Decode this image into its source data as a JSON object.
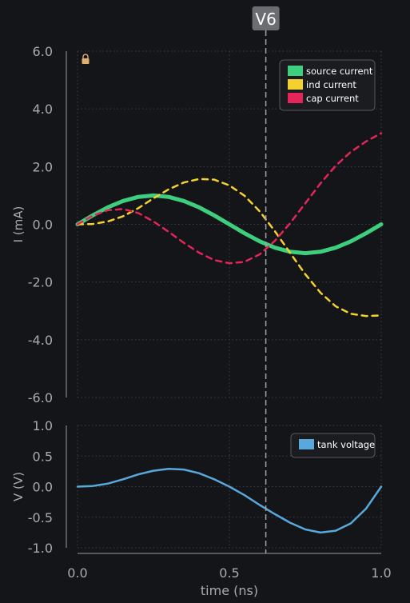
{
  "cursor": {
    "label": "V6",
    "x": 0.62
  },
  "colors": {
    "background": "#141518",
    "axis": "#9a9ca2",
    "grid": "#3c3f46",
    "tick_text": "#a8aab0",
    "cursor": "#a0a2a8",
    "cursor_badge": "#6b6d72",
    "legend_bg": "#1b1c20",
    "legend_border": "#555860",
    "lock": "#e0b070"
  },
  "icons": {
    "lock": "lock-icon"
  },
  "chart_data": [
    {
      "type": "line",
      "ylabel": "I (mA)",
      "ylim": [
        -6,
        6
      ],
      "yticks": [
        "6.0",
        "4.0",
        "2.0",
        "0.0",
        "-2.0",
        "-4.0",
        "-6.0"
      ],
      "grid": true,
      "legend_position": "top-right",
      "x": [
        0,
        0.05,
        0.1,
        0.15,
        0.2,
        0.25,
        0.3,
        0.35,
        0.4,
        0.45,
        0.5,
        0.55,
        0.6,
        0.65,
        0.7,
        0.75,
        0.8,
        0.85,
        0.9,
        0.95,
        1.0
      ],
      "series": [
        {
          "name": "source current",
          "color": "#3ecf7e",
          "style": "solid",
          "values": [
            0.0,
            0.31,
            0.59,
            0.81,
            0.95,
            1.0,
            0.95,
            0.81,
            0.59,
            0.31,
            0.0,
            -0.31,
            -0.59,
            -0.81,
            -0.95,
            -1.0,
            -0.95,
            -0.81,
            -0.59,
            -0.31,
            0.0
          ]
        },
        {
          "name": "ind current",
          "color": "#f5d130",
          "style": "dashed",
          "values": [
            0.0,
            0.01,
            0.1,
            0.28,
            0.56,
            0.9,
            1.21,
            1.45,
            1.57,
            1.55,
            1.35,
            0.99,
            0.45,
            -0.24,
            -0.99,
            -1.73,
            -2.37,
            -2.84,
            -3.1,
            -3.18,
            -3.16
          ]
        },
        {
          "name": "cap current",
          "color": "#e3255a",
          "style": "dashed",
          "values": [
            0.0,
            0.3,
            0.49,
            0.53,
            0.39,
            0.1,
            -0.26,
            -0.64,
            -0.98,
            -1.24,
            -1.35,
            -1.3,
            -1.04,
            -0.57,
            0.04,
            0.73,
            1.42,
            2.03,
            2.51,
            2.87,
            3.16
          ]
        }
      ]
    },
    {
      "type": "line",
      "xlabel": "time (ns)",
      "ylabel": "V (V)",
      "ylim": [
        -1,
        1
      ],
      "yticks": [
        "1.0",
        "0.5",
        "0.0",
        "-0.5",
        "-1.0"
      ],
      "xlim": [
        0,
        1
      ],
      "xticks": [
        "0.0",
        "0.5",
        "1.0"
      ],
      "grid": true,
      "legend_position": "top-right",
      "x": [
        0,
        0.05,
        0.1,
        0.15,
        0.2,
        0.25,
        0.3,
        0.35,
        0.4,
        0.45,
        0.5,
        0.55,
        0.6,
        0.65,
        0.7,
        0.75,
        0.8,
        0.85,
        0.9,
        0.95,
        1.0
      ],
      "series": [
        {
          "name": "tank voltage",
          "color": "#58a8dc",
          "style": "solid",
          "values": [
            0.0,
            0.01,
            0.05,
            0.12,
            0.2,
            0.26,
            0.29,
            0.28,
            0.22,
            0.12,
            0.0,
            -0.14,
            -0.3,
            -0.45,
            -0.59,
            -0.7,
            -0.75,
            -0.72,
            -0.6,
            -0.36,
            0.0
          ]
        }
      ]
    }
  ]
}
